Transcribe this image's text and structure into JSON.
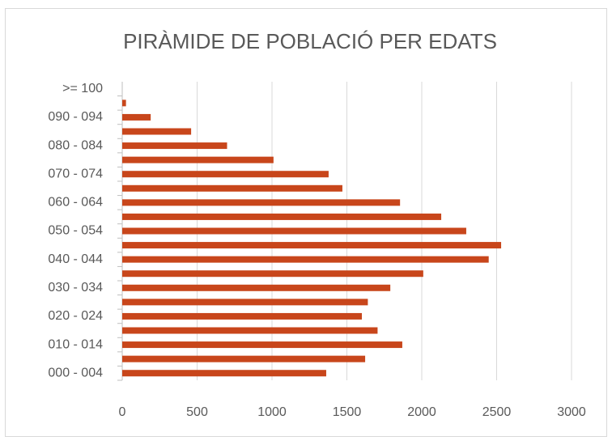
{
  "chart_data": {
    "type": "barh",
    "title": "PIRÀMIDE DE POBLACIÓ PER EDATS",
    "categories": [
      "000 - 004",
      null,
      "010 - 014",
      null,
      "020 - 024",
      null,
      "030 - 034",
      null,
      "040 - 044",
      null,
      "050 - 054",
      null,
      "060 - 064",
      null,
      "070 - 074",
      null,
      "080 - 084",
      null,
      "090 - 094",
      null,
      ">= 100"
    ],
    "values": [
      1362,
      1622,
      1870,
      1705,
      1600,
      1640,
      1790,
      2010,
      2447,
      2530,
      2297,
      2130,
      1855,
      1470,
      1378,
      1010,
      700,
      460,
      190,
      25,
      0
    ],
    "color": "#c8461b",
    "xlim": [
      0,
      3000
    ],
    "xticks": [
      0,
      500,
      1000,
      1500,
      2000,
      2500,
      3000
    ],
    "grid": true
  }
}
